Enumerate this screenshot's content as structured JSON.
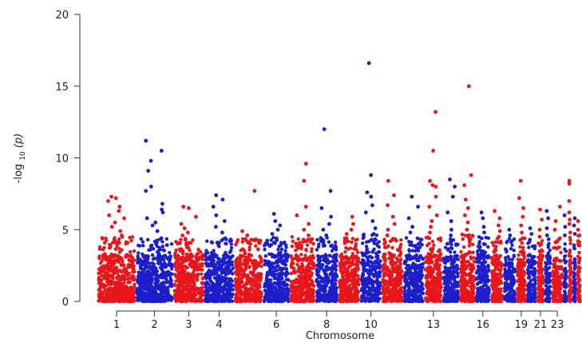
{
  "chart_data": {
    "type": "scatter",
    "xlabel": "Chromosome",
    "ylabel_parts": {
      "prefix": "-log",
      "subscript": "10",
      "suffix": "(p)"
    },
    "ylim": [
      0,
      20
    ],
    "yticks": [
      0,
      5,
      10,
      15,
      20
    ],
    "colors": {
      "odd": "#e8161b",
      "even": "#1c1fc9",
      "axis": "#333333"
    },
    "chromosomes": [
      {
        "chr": 1,
        "length": 8.2,
        "label": "1",
        "baseline_max": 3.3,
        "peaks": [
          7.3,
          7.2,
          7.0,
          6.6,
          6.3,
          6.0,
          5.8,
          5.5,
          5.2,
          4.9,
          4.6,
          4.3,
          4.0
        ]
      },
      {
        "chr": 2,
        "length": 8.0,
        "label": "2",
        "baseline_max": 3.2,
        "peaks": [
          11.2,
          10.5,
          9.8,
          9.1,
          8.0,
          7.7,
          6.8,
          6.4,
          6.2,
          5.8,
          5.5,
          5.3,
          4.9,
          4.4,
          4.0
        ]
      },
      {
        "chr": 3,
        "length": 6.6,
        "label": "3",
        "baseline_max": 3.3,
        "peaks": [
          6.6,
          6.5,
          5.9,
          5.4,
          5.1,
          4.8,
          4.6,
          4.3,
          4.0
        ]
      },
      {
        "chr": 4,
        "length": 6.4,
        "label": "4",
        "baseline_max": 3.2,
        "peaks": [
          7.4,
          7.1,
          6.6,
          6.0,
          5.6,
          5.2,
          4.8,
          4.4,
          4.1
        ]
      },
      {
        "chr": 5,
        "length": 6.1,
        "label": "",
        "baseline_max": 3.2,
        "peaks": [
          7.7,
          4.9,
          4.6,
          4.3,
          4.0
        ]
      },
      {
        "chr": 6,
        "length": 5.8,
        "label": "6",
        "baseline_max": 3.3,
        "peaks": [
          6.1,
          5.6,
          5.3,
          5.0,
          4.7,
          4.4,
          4.1
        ]
      },
      {
        "chr": 7,
        "length": 5.4,
        "label": "",
        "baseline_max": 3.3,
        "peaks": [
          9.6,
          8.4,
          6.6,
          6.0,
          5.4,
          5.0,
          4.6,
          4.3,
          4.0
        ]
      },
      {
        "chr": 8,
        "length": 4.9,
        "label": "8",
        "baseline_max": 3.3,
        "peaks": [
          12.0,
          7.7,
          6.5,
          5.9,
          5.4,
          5.0,
          4.6,
          4.2
        ]
      },
      {
        "chr": 9,
        "length": 4.7,
        "label": "",
        "baseline_max": 3.2,
        "peaks": [
          5.9,
          5.4,
          5.0,
          4.7,
          4.4,
          4.1
        ]
      },
      {
        "chr": 10,
        "length": 4.6,
        "label": "10",
        "baseline_max": 3.5,
        "peaks": [
          16.6,
          8.8,
          7.6,
          7.3,
          6.7,
          6.2,
          5.6,
          5.1,
          4.7,
          4.3
        ]
      },
      {
        "chr": 11,
        "length": 4.6,
        "label": "",
        "baseline_max": 3.3,
        "peaks": [
          8.4,
          7.4,
          6.7,
          5.9,
          5.4,
          5.0,
          4.6,
          4.2
        ]
      },
      {
        "chr": 12,
        "length": 4.5,
        "label": "",
        "baseline_max": 3.3,
        "peaks": [
          7.3,
          6.6,
          5.8,
          5.2,
          4.8,
          4.4,
          4.0
        ]
      },
      {
        "chr": 13,
        "length": 3.9,
        "label": "13",
        "baseline_max": 3.3,
        "peaks": [
          13.2,
          10.5,
          8.4,
          8.1,
          8.0,
          7.3,
          6.6,
          6.0,
          5.6,
          5.2,
          4.8,
          4.4
        ]
      },
      {
        "chr": 14,
        "length": 3.6,
        "label": "",
        "baseline_max": 3.2,
        "peaks": [
          8.5,
          8.0,
          7.3,
          6.2,
          5.6,
          5.0,
          4.6,
          4.2
        ]
      },
      {
        "chr": 15,
        "length": 3.4,
        "label": "",
        "baseline_max": 3.5,
        "peaks": [
          15.0,
          8.8,
          8.1,
          7.1,
          6.5,
          6.0,
          5.5,
          5.0,
          4.6,
          4.2
        ]
      },
      {
        "chr": 16,
        "length": 3.2,
        "label": "16",
        "baseline_max": 3.3,
        "peaks": [
          6.2,
          5.8,
          5.2,
          4.8,
          4.4,
          4.0
        ]
      },
      {
        "chr": 17,
        "length": 2.8,
        "label": "",
        "baseline_max": 3.2,
        "peaks": [
          6.3,
          5.8,
          5.3,
          4.9,
          4.5
        ]
      },
      {
        "chr": 18,
        "length": 2.7,
        "label": "",
        "baseline_max": 3.2,
        "peaks": [
          5.0,
          4.6,
          4.2
        ]
      },
      {
        "chr": 19,
        "length": 2.2,
        "label": "19",
        "baseline_max": 3.3,
        "peaks": [
          8.4,
          7.2,
          6.5,
          5.9,
          5.3,
          4.8,
          4.4
        ]
      },
      {
        "chr": 20,
        "length": 2.2,
        "label": "",
        "baseline_max": 3.2,
        "peaks": [
          5.1,
          4.7,
          4.3
        ]
      },
      {
        "chr": 21,
        "length": 1.6,
        "label": "21",
        "baseline_max": 3.2,
        "peaks": [
          6.4,
          5.7,
          5.0,
          4.5
        ]
      },
      {
        "chr": 22,
        "length": 1.6,
        "label": "",
        "baseline_max": 3.2,
        "peaks": [
          6.3,
          5.8,
          5.1,
          4.6
        ]
      },
      {
        "chr": 23,
        "length": 2.4,
        "label": "23",
        "baseline_max": 3.1,
        "peaks": [
          6.6,
          5.6,
          5.0,
          4.4
        ]
      },
      {
        "chr": 24,
        "length": 1.0,
        "label": "",
        "baseline_max": 3.0,
        "peaks": [
          6.0,
          5.2,
          4.6
        ]
      },
      {
        "chr": 25,
        "length": 1.0,
        "label": "",
        "baseline_max": 3.3,
        "peaks": [
          8.4,
          8.2,
          7.0,
          6.2,
          5.7,
          5.4,
          4.8
        ]
      },
      {
        "chr": 26,
        "length": 0.9,
        "label": "",
        "baseline_max": 3.0,
        "peaks": [
          5.8,
          5.3,
          4.7
        ]
      },
      {
        "chr": 27,
        "length": 1.0,
        "label": "",
        "baseline_max": 3.6,
        "peaks": [
          5.6,
          5.0,
          4.6,
          4.2,
          3.9
        ]
      }
    ]
  }
}
